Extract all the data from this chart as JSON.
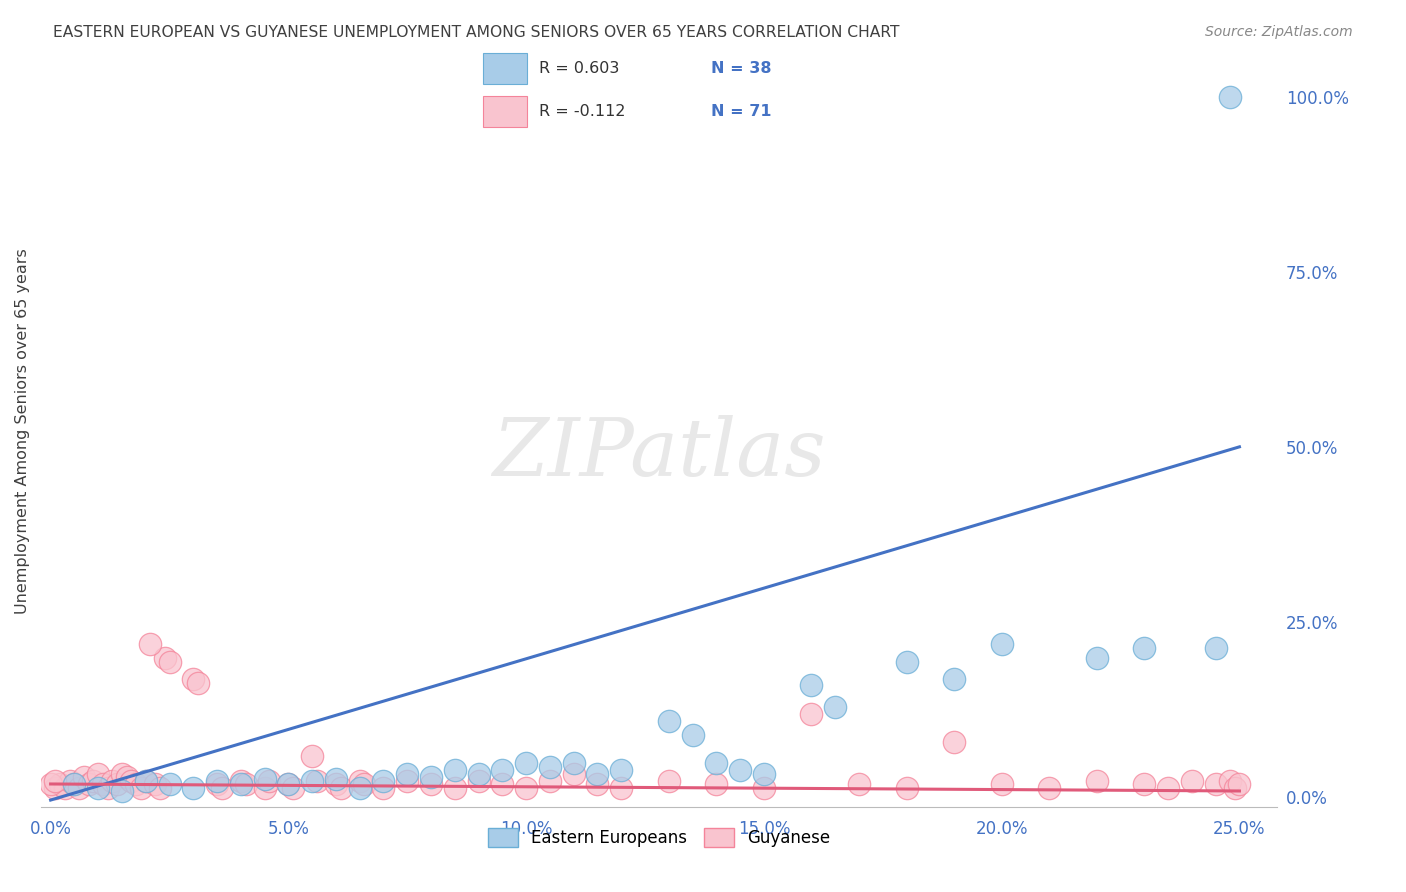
{
  "title": "EASTERN EUROPEAN VS GUYANESE UNEMPLOYMENT AMONG SENIORS OVER 65 YEARS CORRELATION CHART",
  "source": "Source: ZipAtlas.com",
  "ylabel_label": "Unemployment Among Seniors over 65 years",
  "legend_blue_label": "Eastern Europeans",
  "legend_pink_label": "Guyanese",
  "legend_blue_r": "R = 0.603",
  "legend_blue_n": "N = 38",
  "legend_pink_r": "R = -0.112",
  "legend_pink_n": "N = 71",
  "blue_color": "#a8cce8",
  "blue_edge_color": "#6aaed6",
  "pink_color": "#f9c4cf",
  "pink_edge_color": "#f4849a",
  "blue_line_color": "#4472c4",
  "pink_line_color": "#e05a7a",
  "tick_color": "#4472c4",
  "right_tick_color": "#4472c4",
  "background_color": "#ffffff",
  "grid_color": "#d8d8d8",
  "title_color": "#404040",
  "source_color": "#888888",
  "axis_label_color": "#404040",
  "xlim": [
    -0.002,
    0.258
  ],
  "ylim": [
    -0.015,
    1.06
  ],
  "blue_scatter_x": [
    0.005,
    0.01,
    0.015,
    0.02,
    0.025,
    0.03,
    0.035,
    0.04,
    0.045,
    0.05,
    0.055,
    0.06,
    0.065,
    0.07,
    0.075,
    0.08,
    0.085,
    0.09,
    0.095,
    0.1,
    0.105,
    0.11,
    0.115,
    0.12,
    0.13,
    0.135,
    0.14,
    0.145,
    0.15,
    0.16,
    0.165,
    0.18,
    0.19,
    0.2,
    0.22,
    0.23,
    0.245,
    0.248
  ],
  "blue_scatter_y": [
    0.018,
    0.012,
    0.008,
    0.022,
    0.018,
    0.012,
    0.022,
    0.018,
    0.025,
    0.018,
    0.022,
    0.025,
    0.012,
    0.022,
    0.032,
    0.028,
    0.038,
    0.032,
    0.038,
    0.048,
    0.042,
    0.048,
    0.032,
    0.038,
    0.108,
    0.088,
    0.048,
    0.038,
    0.032,
    0.16,
    0.128,
    0.192,
    0.168,
    0.218,
    0.198,
    0.212,
    0.212,
    1.0
  ],
  "pink_scatter_x": [
    0.001,
    0.002,
    0.003,
    0.004,
    0.005,
    0.006,
    0.007,
    0.008,
    0.009,
    0.01,
    0.011,
    0.012,
    0.013,
    0.014,
    0.015,
    0.016,
    0.017,
    0.018,
    0.019,
    0.02,
    0.022,
    0.023,
    0.024,
    0.025,
    0.03,
    0.031,
    0.035,
    0.036,
    0.04,
    0.041,
    0.045,
    0.046,
    0.05,
    0.051,
    0.055,
    0.056,
    0.06,
    0.061,
    0.065,
    0.066,
    0.07,
    0.075,
    0.08,
    0.085,
    0.09,
    0.095,
    0.1,
    0.105,
    0.11,
    0.115,
    0.12,
    0.13,
    0.14,
    0.15,
    0.16,
    0.17,
    0.18,
    0.19,
    0.2,
    0.21,
    0.22,
    0.23,
    0.235,
    0.24,
    0.245,
    0.248,
    0.249,
    0.25,
    0.0,
    0.001,
    0.021
  ],
  "pink_scatter_y": [
    0.012,
    0.018,
    0.012,
    0.022,
    0.018,
    0.012,
    0.028,
    0.018,
    0.022,
    0.032,
    0.018,
    0.012,
    0.022,
    0.018,
    0.032,
    0.028,
    0.022,
    0.018,
    0.012,
    0.022,
    0.018,
    0.012,
    0.198,
    0.192,
    0.168,
    0.162,
    0.018,
    0.012,
    0.022,
    0.018,
    0.012,
    0.022,
    0.018,
    0.012,
    0.058,
    0.022,
    0.018,
    0.012,
    0.022,
    0.018,
    0.012,
    0.022,
    0.018,
    0.012,
    0.022,
    0.018,
    0.012,
    0.022,
    0.032,
    0.018,
    0.012,
    0.022,
    0.018,
    0.012,
    0.118,
    0.018,
    0.012,
    0.078,
    0.018,
    0.012,
    0.022,
    0.018,
    0.012,
    0.022,
    0.018,
    0.022,
    0.012,
    0.018,
    0.018,
    0.022,
    0.218
  ]
}
